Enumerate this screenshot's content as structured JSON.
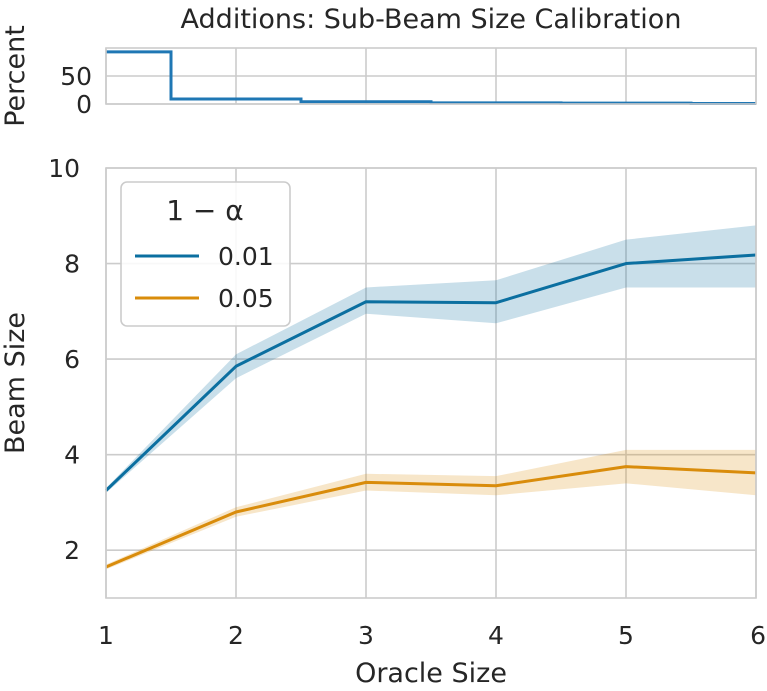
{
  "chart_data": [
    {
      "type": "line",
      "panel": "top",
      "title": "Additions: Sub-Beam Size Calibration",
      "ylabel": "Percent",
      "xlim": [
        1,
        6
      ],
      "ylim": [
        0,
        100
      ],
      "y_ticks": [
        0,
        50
      ],
      "grid": true,
      "steps": [
        {
          "x_start": 1.0,
          "x_end": 1.5,
          "value": 93
        },
        {
          "x_start": 1.5,
          "x_end": 2.5,
          "value": 9
        },
        {
          "x_start": 2.5,
          "x_end": 3.5,
          "value": 4
        },
        {
          "x_start": 3.5,
          "x_end": 4.5,
          "value": 2
        },
        {
          "x_start": 4.5,
          "x_end": 5.5,
          "value": 1.5
        },
        {
          "x_start": 5.5,
          "x_end": 6.0,
          "value": 1
        }
      ],
      "color": "#1f77b4"
    },
    {
      "type": "line",
      "panel": "main",
      "xlabel": "Oracle Size",
      "ylabel": "Beam Size",
      "xlim": [
        1,
        6
      ],
      "ylim": [
        1,
        10
      ],
      "x_ticks": [
        1,
        2,
        3,
        4,
        5,
        6
      ],
      "y_ticks": [
        2,
        4,
        6,
        8,
        10
      ],
      "grid": true,
      "legend": {
        "title": "1 − α",
        "placement": "top-left"
      },
      "x": [
        1,
        2,
        3,
        4,
        5,
        6
      ],
      "series": [
        {
          "name": "0.01",
          "color": "#0b6fa0",
          "values": [
            3.25,
            5.85,
            7.2,
            7.18,
            8.0,
            8.18
          ],
          "lower": [
            3.2,
            5.6,
            6.95,
            6.75,
            7.5,
            7.5
          ],
          "upper": [
            3.3,
            6.1,
            7.5,
            7.65,
            8.5,
            8.8
          ]
        },
        {
          "name": "0.05",
          "color": "#d98c0b",
          "values": [
            1.65,
            2.8,
            3.42,
            3.35,
            3.75,
            3.62
          ],
          "lower": [
            1.6,
            2.7,
            3.25,
            3.15,
            3.4,
            3.15
          ],
          "upper": [
            1.7,
            2.9,
            3.6,
            3.55,
            4.1,
            4.1
          ]
        }
      ]
    }
  ]
}
